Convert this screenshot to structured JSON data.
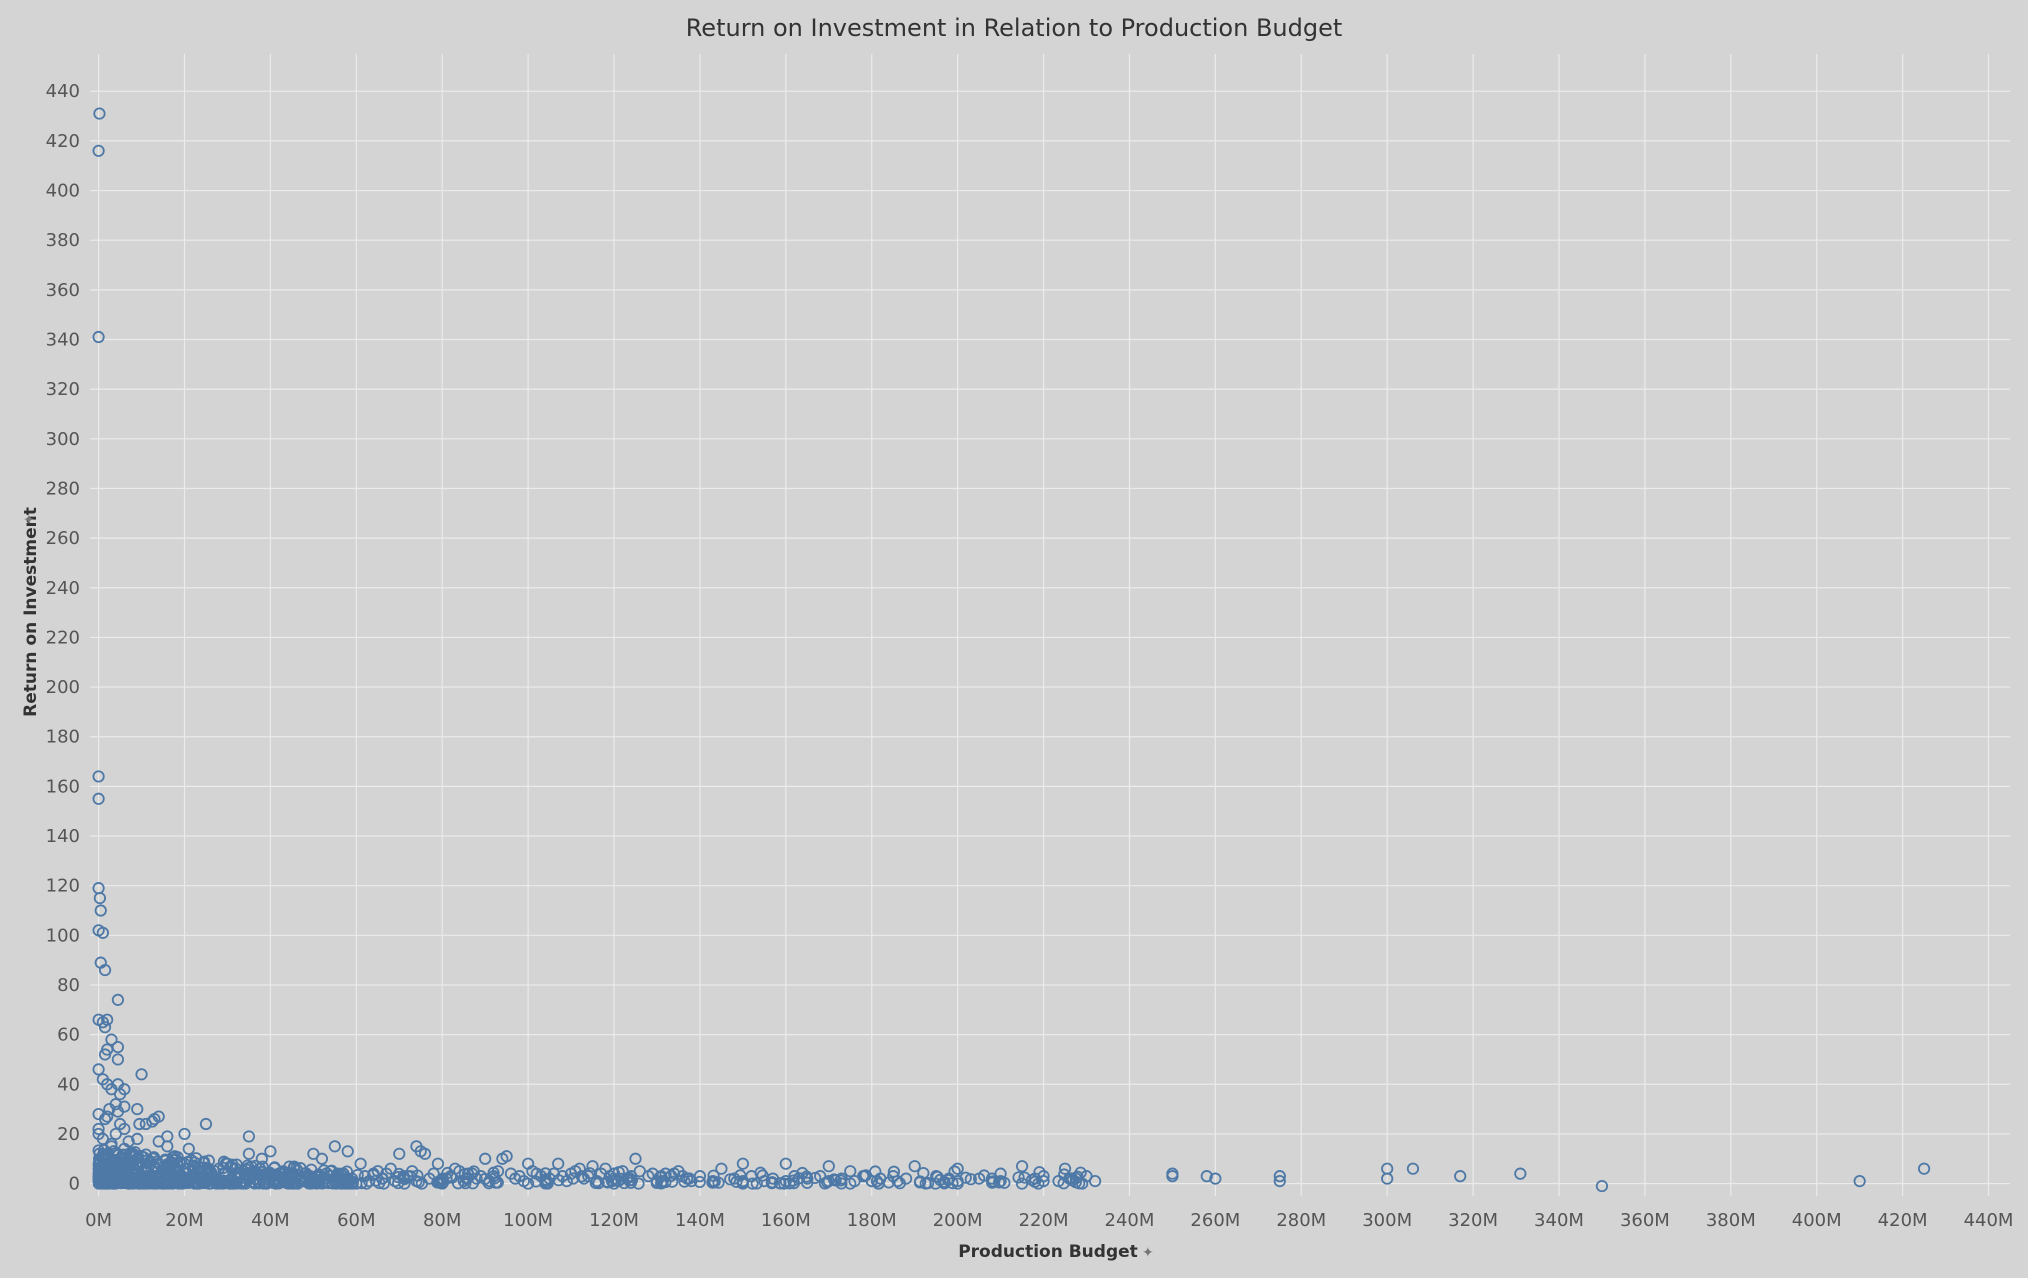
{
  "chart_data": {
    "type": "scatter",
    "title": "Return on Investment in Relation to Production Budget",
    "xlabel": "Production Budget",
    "ylabel": "Return on Investment",
    "x_unit": "M",
    "xlim": [
      -2,
      445
    ],
    "ylim": [
      -5,
      455
    ],
    "x_ticks": [
      0,
      20,
      40,
      60,
      80,
      100,
      120,
      140,
      160,
      180,
      200,
      220,
      240,
      260,
      280,
      300,
      320,
      340,
      360,
      380,
      400,
      420,
      440
    ],
    "y_ticks": [
      0,
      20,
      40,
      60,
      80,
      100,
      120,
      140,
      160,
      180,
      200,
      220,
      240,
      260,
      280,
      300,
      320,
      340,
      360,
      380,
      400,
      420,
      440
    ],
    "x_tick_labels": [
      "0M",
      "20M",
      "40M",
      "60M",
      "80M",
      "100M",
      "120M",
      "140M",
      "160M",
      "180M",
      "200M",
      "220M",
      "240M",
      "260M",
      "280M",
      "300M",
      "320M",
      "340M",
      "360M",
      "380M",
      "400M",
      "420M",
      "440M"
    ],
    "y_tick_labels": [
      "0",
      "20",
      "40",
      "60",
      "80",
      "100",
      "120",
      "140",
      "160",
      "180",
      "200",
      "220",
      "240",
      "260",
      "280",
      "300",
      "320",
      "340",
      "360",
      "380",
      "400",
      "420",
      "440"
    ],
    "grid": true,
    "marker": "open-circle",
    "colors": {
      "marker": "#4e79a7",
      "background": "#d4d4d4",
      "grid": "#ebebeb"
    },
    "points": [
      [
        0.2,
        431
      ],
      [
        0.0,
        416
      ],
      [
        0.0,
        341
      ],
      [
        0.0,
        164
      ],
      [
        0.0,
        155
      ],
      [
        0.0,
        119
      ],
      [
        0.3,
        115
      ],
      [
        0.5,
        110
      ],
      [
        0.0,
        102
      ],
      [
        1.0,
        101
      ],
      [
        0.5,
        89
      ],
      [
        1.5,
        86
      ],
      [
        4.5,
        74
      ],
      [
        0.0,
        66
      ],
      [
        1.0,
        65
      ],
      [
        2.0,
        66
      ],
      [
        1.5,
        63
      ],
      [
        3.0,
        58
      ],
      [
        2.0,
        54
      ],
      [
        1.5,
        52
      ],
      [
        4.5,
        55
      ],
      [
        4.5,
        50
      ],
      [
        0.0,
        46
      ],
      [
        1.0,
        42
      ],
      [
        2.0,
        40
      ],
      [
        10.0,
        44
      ],
      [
        4.5,
        40
      ],
      [
        3.0,
        38
      ],
      [
        6.0,
        38
      ],
      [
        5.0,
        36
      ],
      [
        4.0,
        32
      ],
      [
        2.5,
        30
      ],
      [
        6.0,
        31
      ],
      [
        9.0,
        30
      ],
      [
        4.5,
        29
      ],
      [
        0.0,
        28
      ],
      [
        2.0,
        27
      ],
      [
        14.0,
        27
      ],
      [
        13.0,
        26
      ],
      [
        1.5,
        26
      ],
      [
        25.0,
        24
      ],
      [
        9.5,
        24
      ],
      [
        11.0,
        24
      ],
      [
        12.5,
        25
      ],
      [
        0.0,
        22
      ],
      [
        6.0,
        22
      ],
      [
        20.0,
        20
      ],
      [
        16.0,
        19
      ],
      [
        35.0,
        19
      ],
      [
        0.0,
        20
      ],
      [
        9.0,
        18
      ],
      [
        14.0,
        17
      ],
      [
        55.0,
        15
      ],
      [
        74.0,
        15
      ],
      [
        3.0,
        16
      ],
      [
        16.0,
        15
      ],
      [
        21.0,
        14
      ],
      [
        40.0,
        13
      ],
      [
        58.0,
        13
      ],
      [
        75.0,
        13
      ],
      [
        50.0,
        12
      ],
      [
        70.0,
        12
      ],
      [
        35.0,
        12
      ],
      [
        76.0,
        12
      ],
      [
        95.0,
        11
      ],
      [
        90.0,
        10
      ],
      [
        125.0,
        10
      ],
      [
        38.0,
        10
      ],
      [
        52.0,
        10
      ],
      [
        94.0,
        10
      ],
      [
        30.0,
        8
      ],
      [
        61.0,
        8
      ],
      [
        79.0,
        8
      ],
      [
        100.0,
        8
      ],
      [
        107.0,
        8
      ],
      [
        115.0,
        7
      ],
      [
        150.0,
        8
      ],
      [
        160.0,
        8
      ],
      [
        170.0,
        7
      ],
      [
        190.0,
        7
      ],
      [
        215.0,
        7
      ],
      [
        28.0,
        6
      ],
      [
        46.0,
        6
      ],
      [
        68.0,
        6
      ],
      [
        83.0,
        6
      ],
      [
        112.0,
        6
      ],
      [
        118.0,
        6
      ],
      [
        135.0,
        5
      ],
      [
        145.0,
        6
      ],
      [
        175.0,
        5
      ],
      [
        200.0,
        6
      ],
      [
        225.0,
        6
      ],
      [
        300.0,
        6
      ],
      [
        306.0,
        6
      ],
      [
        425.0,
        6
      ],
      [
        8.0,
        4
      ],
      [
        18.0,
        5
      ],
      [
        22.0,
        3
      ],
      [
        33.0,
        4
      ],
      [
        42.0,
        3
      ],
      [
        48.0,
        4
      ],
      [
        56.0,
        3
      ],
      [
        64.0,
        4
      ],
      [
        72.0,
        3
      ],
      [
        86.0,
        4
      ],
      [
        92.0,
        3
      ],
      [
        102.0,
        4
      ],
      [
        110.0,
        4
      ],
      [
        120.0,
        4
      ],
      [
        128.0,
        3
      ],
      [
        132.0,
        4
      ],
      [
        140.0,
        3
      ],
      [
        152.0,
        3
      ],
      [
        162.0,
        3
      ],
      [
        168.0,
        3
      ],
      [
        178.0,
        3
      ],
      [
        185.0,
        3
      ],
      [
        195.0,
        3
      ],
      [
        205.0,
        2
      ],
      [
        210.0,
        4
      ],
      [
        220.0,
        3
      ],
      [
        230.0,
        3
      ],
      [
        250.0,
        4
      ],
      [
        258.0,
        3
      ],
      [
        275.0,
        3
      ],
      [
        317.0,
        3
      ],
      [
        331.0,
        4
      ],
      [
        3.0,
        2
      ],
      [
        11.0,
        2
      ],
      [
        24.0,
        2
      ],
      [
        31.0,
        2
      ],
      [
        37.0,
        2
      ],
      [
        44.0,
        2
      ],
      [
        53.0,
        2
      ],
      [
        59.0,
        2
      ],
      [
        66.0,
        2
      ],
      [
        77.0,
        2
      ],
      [
        81.0,
        2
      ],
      [
        88.0,
        2
      ],
      [
        97.0,
        2
      ],
      [
        105.0,
        2
      ],
      [
        113.0,
        2
      ],
      [
        123.0,
        2
      ],
      [
        137.0,
        2
      ],
      [
        148.0,
        2
      ],
      [
        157.0,
        2
      ],
      [
        165.0,
        2
      ],
      [
        173.0,
        2
      ],
      [
        182.0,
        2
      ],
      [
        188.0,
        2
      ],
      [
        198.0,
        2
      ],
      [
        208.0,
        2
      ],
      [
        218.0,
        2
      ],
      [
        226.0,
        2
      ],
      [
        232.0,
        1
      ],
      [
        250.0,
        3
      ],
      [
        260.0,
        2
      ],
      [
        275.0,
        1
      ],
      [
        300.0,
        2
      ],
      [
        410.0,
        1
      ],
      [
        1.0,
        1
      ],
      [
        5.0,
        1
      ],
      [
        13.0,
        1
      ],
      [
        19.0,
        1
      ],
      [
        27.0,
        1
      ],
      [
        34.0,
        1
      ],
      [
        41.0,
        1
      ],
      [
        47.0,
        1
      ],
      [
        51.0,
        1
      ],
      [
        57.0,
        1
      ],
      [
        63.0,
        1
      ],
      [
        69.0,
        1
      ],
      [
        74.0,
        1
      ],
      [
        85.0,
        1
      ],
      [
        91.0,
        1
      ],
      [
        99.0,
        1
      ],
      [
        104.0,
        1
      ],
      [
        109.0,
        1
      ],
      [
        116.0,
        1
      ],
      [
        121.0,
        1
      ],
      [
        130.0,
        1
      ],
      [
        138.0,
        1
      ],
      [
        143.0,
        1
      ],
      [
        150.0,
        1
      ],
      [
        155.0,
        1
      ],
      [
        160.0,
        1
      ],
      [
        170.0,
        1
      ],
      [
        176.0,
        1
      ],
      [
        180.0,
        1
      ],
      [
        186.0,
        1
      ],
      [
        200.0,
        1
      ],
      [
        210.0,
        1
      ],
      [
        220.0,
        1
      ],
      [
        0.5,
        0
      ],
      [
        7.0,
        0
      ],
      [
        15.0,
        0
      ],
      [
        23.0,
        0
      ],
      [
        29.0,
        0
      ],
      [
        39.0,
        0
      ],
      [
        45.0,
        0
      ],
      [
        60.0,
        0
      ],
      [
        80.0,
        0
      ],
      [
        100.0,
        0
      ],
      [
        120.0,
        0
      ],
      [
        150.0,
        0
      ],
      [
        175.0,
        0
      ],
      [
        200.0,
        0
      ],
      [
        350.0,
        -1
      ],
      [
        2.0,
        12
      ],
      [
        5.0,
        10
      ],
      [
        7.0,
        9
      ],
      [
        9.0,
        8
      ],
      [
        11.0,
        7
      ],
      [
        13.0,
        6
      ],
      [
        15.0,
        5
      ],
      [
        17.0,
        4
      ],
      [
        19.0,
        3
      ],
      [
        21.0,
        6
      ],
      [
        23.0,
        5
      ],
      [
        26.0,
        4
      ],
      [
        6.0,
        14
      ],
      [
        8.0,
        12
      ],
      [
        10.0,
        11
      ],
      [
        12.0,
        9
      ],
      [
        14.0,
        8
      ],
      [
        16.0,
        7
      ],
      [
        18.0,
        6
      ],
      [
        20.0,
        8
      ],
      [
        22.0,
        7
      ],
      [
        24.0,
        6
      ],
      [
        27.0,
        5
      ],
      [
        29.0,
        4
      ],
      [
        1.0,
        18
      ],
      [
        3.0,
        15
      ],
      [
        4.0,
        20
      ],
      [
        5.0,
        24
      ],
      [
        7.0,
        17
      ],
      [
        8.0,
        6
      ],
      [
        10.0,
        5
      ],
      [
        12.0,
        3
      ],
      [
        14.0,
        2
      ],
      [
        16.0,
        3
      ],
      [
        18.0,
        1
      ],
      [
        20.0,
        2
      ],
      [
        32.0,
        6
      ],
      [
        36.0,
        5
      ],
      [
        39.0,
        4
      ],
      [
        43.0,
        5
      ],
      [
        45.0,
        4
      ],
      [
        49.0,
        3
      ],
      [
        54.0,
        5
      ],
      [
        57.0,
        4
      ],
      [
        62.0,
        3
      ],
      [
        65.0,
        5
      ],
      [
        67.0,
        4
      ],
      [
        71.0,
        3
      ],
      [
        73.0,
        5
      ],
      [
        78.0,
        4
      ],
      [
        82.0,
        3
      ],
      [
        84.0,
        5
      ],
      [
        87.0,
        4
      ],
      [
        89.0,
        3
      ],
      [
        93.0,
        5
      ],
      [
        96.0,
        4
      ],
      [
        98.0,
        3
      ],
      [
        101.0,
        5
      ],
      [
        103.0,
        3
      ],
      [
        106.0,
        4
      ],
      [
        108.0,
        3
      ],
      [
        111.0,
        5
      ],
      [
        114.0,
        3
      ],
      [
        117.0,
        4
      ],
      [
        119.0,
        3
      ],
      [
        122.0,
        5
      ],
      [
        124.0,
        3
      ],
      [
        126.0,
        5
      ],
      [
        129.0,
        4
      ],
      [
        131.0,
        3
      ],
      [
        134.0,
        4
      ],
      [
        136.0,
        3
      ]
    ]
  }
}
